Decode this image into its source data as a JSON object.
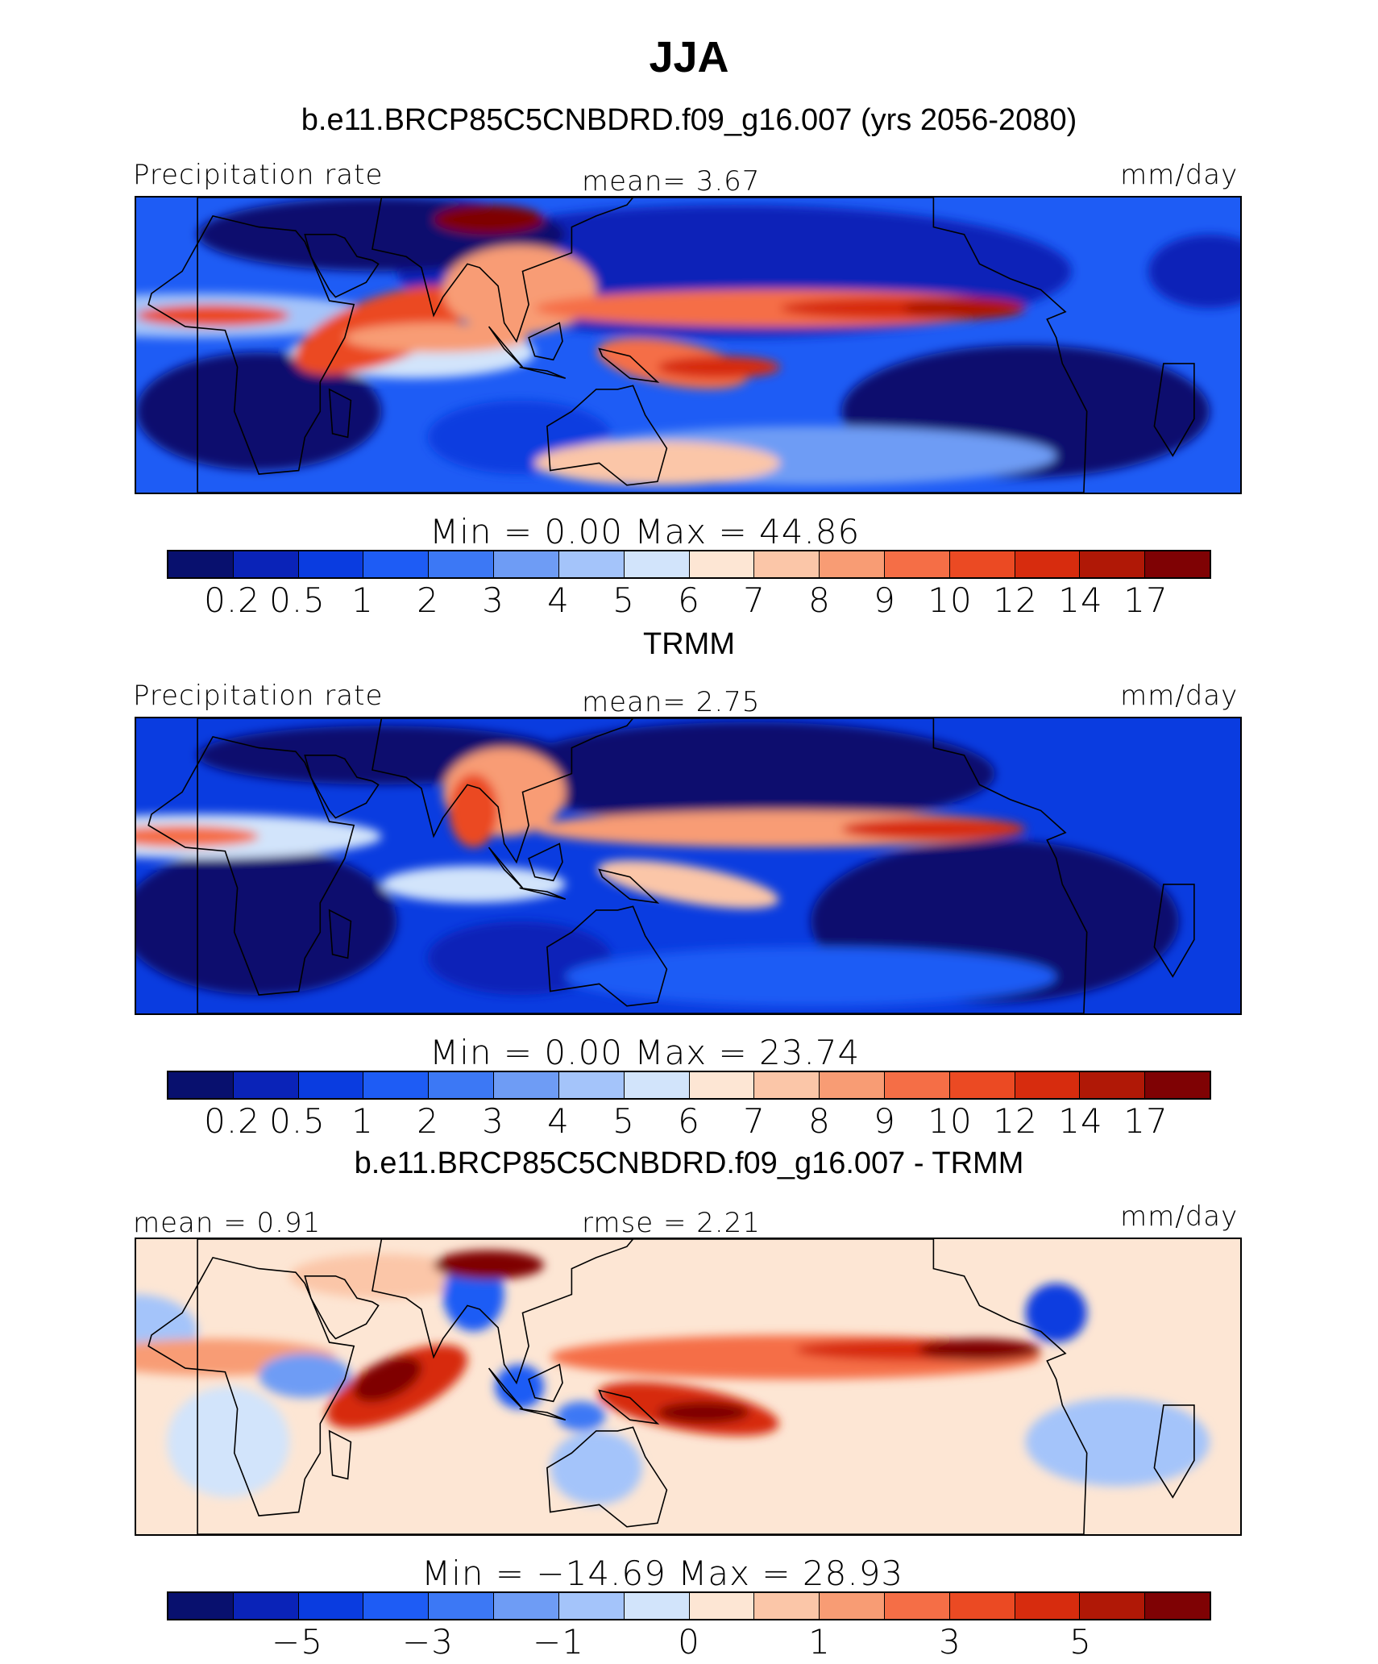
{
  "title": "JJA",
  "colors": {
    "levels": [
      "#08106e",
      "#0a23b8",
      "#0a3ce0",
      "#1e5cf5",
      "#3c78f5",
      "#6e9cf5",
      "#a4c4fa",
      "#d2e4fb",
      "#fde6d4",
      "#fbc6a8",
      "#f89c74",
      "#f56e46",
      "#eb4a23",
      "#d72c0e",
      "#b01806",
      "#7f0204"
    ]
  },
  "panels": [
    {
      "title": "b.e11.BRCP85C5CNBDRD.f09_g16.007 (yrs 2056-2080)",
      "left_label": "Precipitation rate",
      "center_label": "mean=    3.67",
      "right_label": "mm/day",
      "minmax": "Min  =     0.00  Max  =    44.86",
      "ticks": [
        "0.2",
        "0.5",
        "1",
        "2",
        "3",
        "4",
        "5",
        "6",
        "7",
        "8",
        "9",
        "10",
        "12",
        "14",
        "17"
      ]
    },
    {
      "title": "TRMM",
      "left_label": "Precipitation rate",
      "center_label": "mean=    2.75",
      "right_label": "mm/day",
      "minmax": "Min  =     0.00  Max  =    23.74",
      "ticks": [
        "0.2",
        "0.5",
        "1",
        "2",
        "3",
        "4",
        "5",
        "6",
        "7",
        "8",
        "9",
        "10",
        "12",
        "14",
        "17"
      ]
    },
    {
      "title": "b.e11.BRCP85C5CNBDRD.f09_g16.007 - TRMM",
      "left_label": "mean  =    0.91",
      "center_label": "rmse  =    2.21",
      "right_label": "mm/day",
      "minmax": "Min  = −14.69  Max  =    28.93",
      "ticks": [
        "−5",
        "−3",
        "−1",
        "0",
        "1",
        "3",
        "5"
      ]
    }
  ]
}
